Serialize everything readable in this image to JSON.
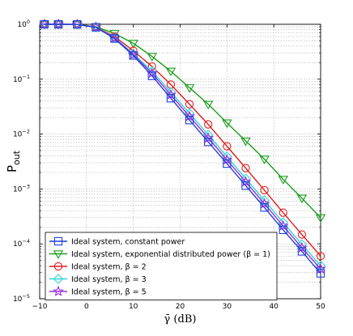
{
  "chart_data": {
    "type": "line",
    "title": "",
    "xlabel": "γ̄ (dB)",
    "ylabel": {
      "main": "P",
      "sub": "out"
    },
    "xlim": [
      -10,
      50
    ],
    "ylim_log10": [
      -5,
      0
    ],
    "yscale": "log",
    "grid": true,
    "legend_position": "bottom-left",
    "xticks": [
      -10,
      0,
      10,
      20,
      30,
      40,
      50
    ],
    "xtick_labels": [
      "−10",
      "0",
      "10",
      "20",
      "30",
      "40",
      "50"
    ],
    "yticks_exp": [
      -5,
      -4,
      -3,
      -2,
      -1,
      0
    ],
    "series": [
      {
        "name": "Ideal system, constant power",
        "color": "#1f3fd6",
        "marker": "square",
        "x": [
          -9,
          -6,
          -2,
          2,
          6,
          10,
          14,
          18,
          22,
          26,
          30,
          34,
          38,
          42,
          46,
          50
        ],
        "y": [
          1,
          1,
          0.995,
          0.88,
          0.55,
          0.27,
          0.115,
          0.045,
          0.018,
          0.0072,
          0.0029,
          0.00115,
          0.00046,
          0.00018,
          7.3e-05,
          2.9e-05
        ]
      },
      {
        "name": "Ideal system, exponential distributed power (β = 1)",
        "color": "#1e9e1e",
        "marker": "triangle-down",
        "x": [
          -9,
          -6,
          -2,
          2,
          6,
          10,
          14,
          18,
          22,
          26,
          30,
          34,
          38,
          42,
          46,
          50
        ],
        "y": [
          1,
          1,
          0.995,
          0.9,
          0.68,
          0.45,
          0.26,
          0.14,
          0.07,
          0.035,
          0.016,
          0.0075,
          0.0035,
          0.0015,
          0.00068,
          0.0003
        ]
      },
      {
        "name": "Ideal system, β = 2",
        "color": "#e01e1e",
        "marker": "circle",
        "x": [
          -9,
          -6,
          -2,
          2,
          6,
          10,
          14,
          18,
          22,
          26,
          30,
          34,
          38,
          42,
          46,
          50
        ],
        "y": [
          1,
          1,
          0.995,
          0.89,
          0.6,
          0.33,
          0.17,
          0.08,
          0.035,
          0.015,
          0.006,
          0.0024,
          0.00095,
          0.00037,
          0.000148,
          6e-05
        ]
      },
      {
        "name": "Ideal system, β = 3",
        "color": "#2fd6d6",
        "marker": "diamond",
        "x": [
          -9,
          -6,
          -2,
          2,
          6,
          10,
          14,
          18,
          22,
          26,
          30,
          34,
          38,
          42,
          46,
          50
        ],
        "y": [
          1,
          1,
          0.995,
          0.885,
          0.57,
          0.29,
          0.14,
          0.058,
          0.024,
          0.0097,
          0.0039,
          0.00155,
          0.00062,
          0.000245,
          9.8e-05,
          4e-05
        ]
      },
      {
        "name": "Ideal system, β = 5",
        "color": "#9a2fe0",
        "marker": "star",
        "x": [
          -9,
          -6,
          -2,
          2,
          6,
          10,
          14,
          18,
          22,
          26,
          30,
          34,
          38,
          42,
          46,
          50
        ],
        "y": [
          1,
          1,
          0.995,
          0.882,
          0.56,
          0.28,
          0.128,
          0.052,
          0.021,
          0.0085,
          0.0034,
          0.00135,
          0.00054,
          0.000213,
          8.5e-05,
          3.5e-05
        ]
      }
    ]
  }
}
